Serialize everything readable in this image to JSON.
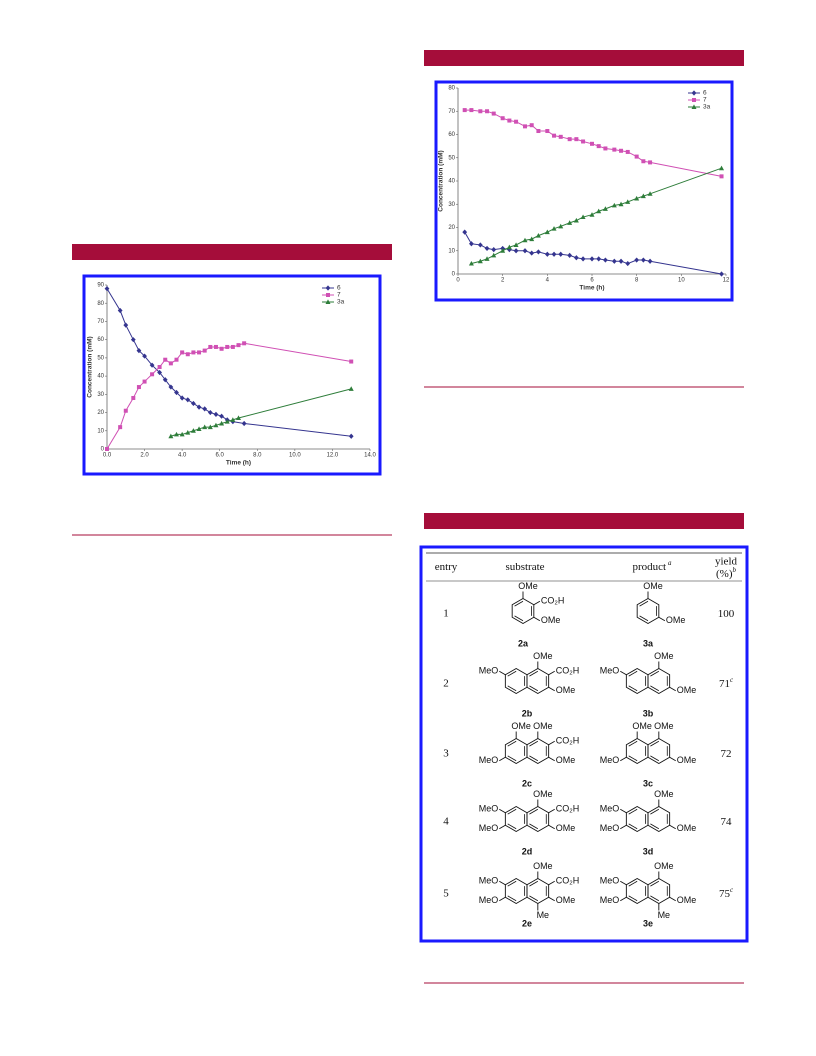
{
  "chart_data": [
    {
      "type": "line",
      "x_label": "Time (h)",
      "y_label": "Concentration (mM)",
      "xlim": [
        0,
        14
      ],
      "xticks": [
        {
          "value": 0,
          "label": "0.0"
        },
        {
          "value": 2,
          "label": "2.0"
        },
        {
          "value": 4,
          "label": "4.0"
        },
        {
          "value": 6,
          "label": "6.0"
        },
        {
          "value": 8,
          "label": "8.0"
        },
        {
          "value": 10,
          "label": "10.0"
        },
        {
          "value": 12,
          "label": "12.0"
        },
        {
          "value": 14,
          "label": "14.0"
        }
      ],
      "ylim": [
        0,
        90
      ],
      "yticks": [
        0,
        10,
        20,
        30,
        40,
        50,
        60,
        70,
        80,
        90
      ],
      "series": [
        {
          "name": "6",
          "color": "#35358f",
          "marker": "diamond",
          "x": [
            0,
            0.7,
            1,
            1.4,
            1.7,
            2,
            2.4,
            2.8,
            3.1,
            3.4,
            3.7,
            4,
            4.3,
            4.6,
            4.9,
            5.2,
            5.5,
            5.8,
            6.1,
            6.4,
            6.7,
            7.3,
            13
          ],
          "values": [
            88,
            76,
            68,
            60,
            54,
            51,
            46,
            42,
            38,
            34,
            31,
            28,
            27,
            25,
            23,
            22,
            20,
            19,
            18,
            16,
            15,
            14,
            7
          ]
        },
        {
          "name": "7",
          "color": "#d050b4",
          "marker": "square",
          "x": [
            0,
            0.7,
            1,
            1.4,
            1.7,
            2,
            2.4,
            2.8,
            3.1,
            3.4,
            3.7,
            4,
            4.3,
            4.6,
            4.9,
            5.2,
            5.5,
            5.8,
            6.1,
            6.4,
            6.7,
            7,
            7.3,
            13
          ],
          "values": [
            0,
            12,
            21,
            28,
            34,
            37,
            41,
            45,
            49,
            47,
            49,
            53,
            52,
            53,
            53,
            54,
            56,
            56,
            55,
            56,
            56,
            57,
            58,
            48
          ]
        },
        {
          "name": "3a",
          "color": "#2e7d3a",
          "marker": "triangle",
          "x": [
            3.4,
            3.7,
            4,
            4.3,
            4.6,
            4.9,
            5.2,
            5.5,
            5.8,
            6.1,
            6.4,
            6.7,
            7,
            13
          ],
          "values": [
            7,
            8,
            8,
            9,
            10,
            11,
            12,
            12,
            13,
            14,
            15,
            16,
            17,
            33
          ]
        }
      ]
    },
    {
      "type": "line",
      "x_label": "Time (h)",
      "y_label": "Concentration (mM)",
      "xlim": [
        0,
        12
      ],
      "xticks": [
        0,
        2,
        4,
        6,
        8,
        10,
        12
      ],
      "ylim": [
        0,
        80
      ],
      "yticks": [
        0,
        10,
        20,
        30,
        40,
        50,
        60,
        70,
        80
      ],
      "series": [
        {
          "name": "6",
          "color": "#35358f",
          "marker": "diamond",
          "x": [
            0.3,
            0.6,
            1,
            1.3,
            1.6,
            2,
            2.3,
            2.6,
            3,
            3.3,
            3.6,
            4,
            4.3,
            4.6,
            5,
            5.3,
            5.6,
            6,
            6.3,
            6.6,
            7,
            7.3,
            7.6,
            8,
            8.3,
            8.6,
            11.8
          ],
          "values": [
            18,
            13,
            12.5,
            11,
            10.5,
            11,
            10.5,
            10,
            10,
            9,
            9.5,
            8.5,
            8.5,
            8.5,
            8,
            7,
            6.5,
            6.5,
            6.5,
            6,
            5.5,
            5.5,
            4.5,
            6,
            6,
            5.5,
            0
          ]
        },
        {
          "name": "7",
          "color": "#d050b4",
          "marker": "square",
          "x": [
            0.3,
            0.6,
            1,
            1.3,
            1.6,
            2,
            2.3,
            2.6,
            3,
            3.3,
            3.6,
            4,
            4.3,
            4.6,
            5,
            5.3,
            5.6,
            6,
            6.3,
            6.6,
            7,
            7.3,
            7.6,
            8,
            8.3,
            8.6,
            11.8
          ],
          "values": [
            70.5,
            70.5,
            70,
            70,
            69,
            67,
            66,
            65.5,
            63.5,
            64,
            61.5,
            61.5,
            59.5,
            59,
            58,
            58,
            57,
            56,
            55,
            54,
            53.5,
            53,
            52.5,
            50.5,
            48.5,
            48,
            42
          ]
        },
        {
          "name": "3a",
          "color": "#2e7d3a",
          "marker": "triangle",
          "x": [
            0.6,
            1,
            1.3,
            1.6,
            2,
            2.3,
            2.6,
            3,
            3.3,
            3.6,
            4,
            4.3,
            4.6,
            5,
            5.3,
            5.6,
            6,
            6.3,
            6.6,
            7,
            7.3,
            7.6,
            8,
            8.3,
            8.6,
            11.8
          ],
          "values": [
            4.5,
            5.5,
            6.5,
            8,
            10,
            11.5,
            12.5,
            14.5,
            15,
            16.5,
            18,
            19.5,
            20.5,
            22,
            23,
            24.5,
            25.5,
            27,
            28,
            29.5,
            30,
            31,
            32.5,
            33.5,
            34.5,
            45.5
          ]
        }
      ]
    }
  ],
  "table": {
    "header": [
      {
        "text": "entry"
      },
      {
        "text": "substrate"
      },
      {
        "text": "product",
        "note": "a"
      },
      {
        "lines": [
          "yield",
          "(%)"
        ],
        "note": "b"
      }
    ],
    "rows": [
      {
        "entry": "1",
        "substrate": {
          "label": "2a",
          "groups": [
            "OMe",
            "CO₂H",
            "OMe"
          ]
        },
        "product": {
          "label": "3a",
          "groups": [
            "OMe",
            "OMe"
          ]
        },
        "yield": "100"
      },
      {
        "entry": "2",
        "substrate": {
          "label": "2b",
          "groups": [
            "OMe",
            "CO₂H",
            "OMe",
            "MeO"
          ]
        },
        "product": {
          "label": "3b",
          "groups": [
            "OMe",
            "OMe",
            "MeO"
          ]
        },
        "yield": "71",
        "yield_note": "c"
      },
      {
        "entry": "3",
        "substrate": {
          "label": "2c",
          "groups": [
            "OMe",
            "OMe",
            "CO₂H",
            "OMe",
            "MeO"
          ]
        },
        "product": {
          "label": "3c",
          "groups": [
            "OMe",
            "OMe",
            "OMe",
            "MeO"
          ]
        },
        "yield": "72"
      },
      {
        "entry": "4",
        "substrate": {
          "label": "2d",
          "groups": [
            "OMe",
            "CO₂H",
            "OMe",
            "MeO",
            "MeO"
          ]
        },
        "product": {
          "label": "3d",
          "groups": [
            "OMe",
            "OMe",
            "MeO",
            "MeO"
          ]
        },
        "yield": "74"
      },
      {
        "entry": "5",
        "substrate": {
          "label": "2e",
          "groups": [
            "OMe",
            "CO₂H",
            "OMe",
            "MeO",
            "MeO",
            "Me"
          ]
        },
        "product": {
          "label": "3e",
          "groups": [
            "OMe",
            "OMe",
            "MeO",
            "MeO",
            "Me"
          ]
        },
        "yield": "75",
        "yield_note": "c"
      }
    ]
  }
}
